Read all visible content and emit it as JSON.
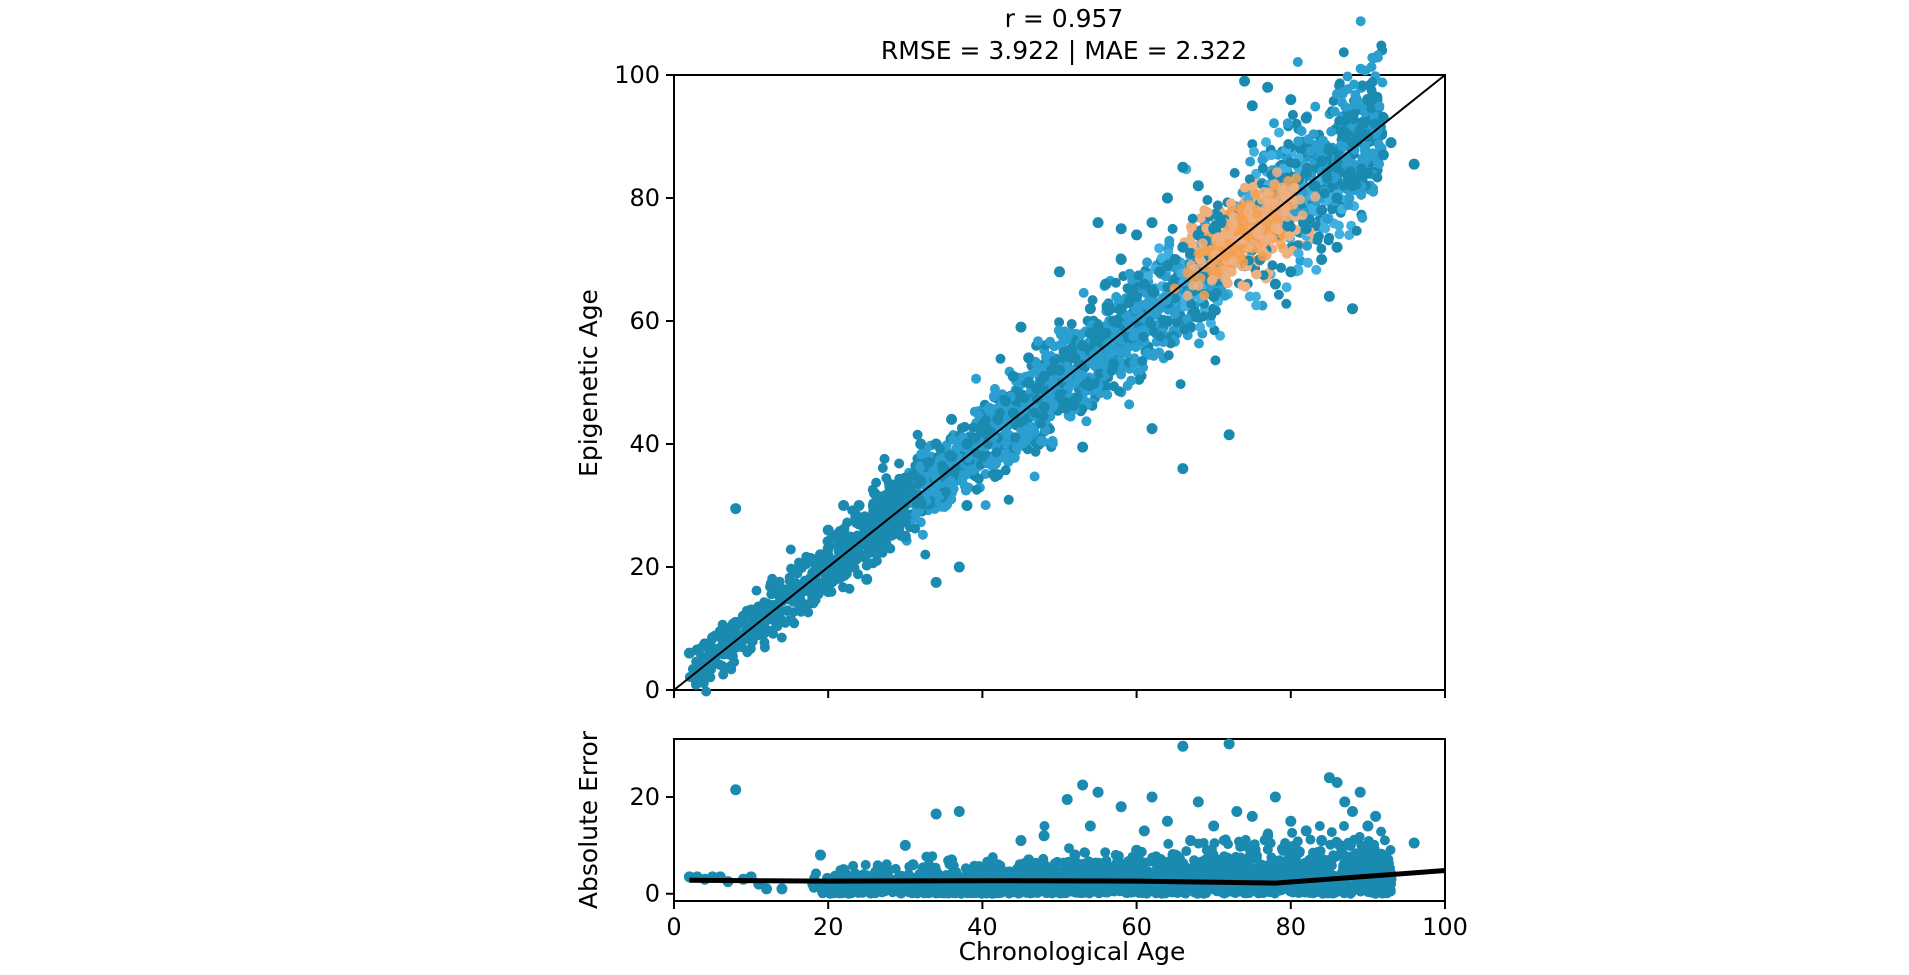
{
  "chart_data": [
    {
      "type": "scatter",
      "panel": "top",
      "title_line1": "r = 0.957",
      "title_line2": "RMSE = 3.922 | MAE = 2.322",
      "xlabel": "",
      "ylabel": "Epigenetic Age",
      "xlim": [
        0,
        100
      ],
      "ylim": [
        0,
        100
      ],
      "x_ticks": [
        0,
        20,
        40,
        60,
        80,
        100
      ],
      "y_ticks": [
        0,
        20,
        40,
        60,
        80,
        100
      ],
      "x_tick_labels_shown": false,
      "y_tick_labels": [
        "0",
        "20",
        "40",
        "60",
        "80",
        "100"
      ],
      "grid": false,
      "point_color": "#1a8ab0",
      "density_colormap": [
        "#1a8ab0",
        "#2a9fd0",
        "#3fb0e0",
        "#f0b080",
        "#f5a050"
      ],
      "reference_line": {
        "kind": "identity",
        "from": [
          0,
          0
        ],
        "to": [
          100,
          100
        ],
        "color": "#000000"
      },
      "points": [
        [
          2,
          6
        ],
        [
          3,
          6.5
        ],
        [
          4,
          7.5
        ],
        [
          5,
          8.5
        ],
        [
          6,
          9.5
        ],
        [
          7,
          10
        ],
        [
          8,
          11
        ],
        [
          9,
          12
        ],
        [
          10,
          13
        ],
        [
          11,
          13.5
        ],
        [
          12,
          14
        ],
        [
          14,
          14.5
        ],
        [
          15,
          15
        ],
        [
          16,
          16
        ],
        [
          8,
          29.5
        ],
        [
          18,
          19
        ],
        [
          19,
          22
        ],
        [
          20,
          23
        ],
        [
          21,
          25
        ],
        [
          22,
          26
        ],
        [
          23,
          24
        ],
        [
          24,
          27
        ],
        [
          25,
          26
        ],
        [
          26,
          28
        ],
        [
          27,
          31
        ],
        [
          28,
          29
        ],
        [
          29,
          30
        ],
        [
          30,
          32
        ],
        [
          31,
          35
        ],
        [
          32,
          34
        ],
        [
          33,
          37
        ],
        [
          34,
          40
        ],
        [
          34,
          17.5
        ],
        [
          37,
          20
        ],
        [
          35,
          36
        ],
        [
          36,
          38
        ],
        [
          38,
          40
        ],
        [
          39,
          41
        ],
        [
          40,
          43
        ],
        [
          41,
          42
        ],
        [
          42,
          44
        ],
        [
          43,
          47
        ],
        [
          44,
          45
        ],
        [
          45,
          48
        ],
        [
          46,
          50
        ],
        [
          47,
          49
        ],
        [
          48,
          51
        ],
        [
          49,
          52
        ],
        [
          50,
          52
        ],
        [
          51,
          55
        ],
        [
          52,
          54
        ],
        [
          53,
          56
        ],
        [
          54,
          58
        ],
        [
          55,
          59
        ],
        [
          56,
          58
        ],
        [
          57,
          60
        ],
        [
          58,
          62
        ],
        [
          59,
          63
        ],
        [
          60,
          64
        ],
        [
          61,
          66
        ],
        [
          62,
          65
        ],
        [
          63,
          68
        ],
        [
          64,
          69
        ],
        [
          65,
          70
        ],
        [
          66,
          72
        ],
        [
          67,
          71
        ],
        [
          68,
          74
        ],
        [
          69,
          73
        ],
        [
          70,
          75
        ],
        [
          71,
          76
        ],
        [
          72,
          74
        ],
        [
          73,
          77
        ],
        [
          74,
          78
        ],
        [
          75,
          76
        ],
        [
          76,
          79
        ],
        [
          77,
          78
        ],
        [
          78,
          81
        ],
        [
          79,
          80
        ],
        [
          80,
          82
        ],
        [
          81,
          83
        ],
        [
          82,
          84
        ],
        [
          83,
          82
        ],
        [
          84,
          86
        ],
        [
          85,
          88
        ],
        [
          86,
          85
        ],
        [
          87,
          90
        ],
        [
          88,
          89
        ],
        [
          89,
          91
        ],
        [
          90,
          90
        ],
        [
          91,
          92
        ],
        [
          92,
          93
        ],
        [
          93,
          89
        ],
        [
          96,
          85.5
        ],
        [
          53,
          39.5
        ],
        [
          62,
          42.5
        ],
        [
          66,
          36
        ],
        [
          72,
          41.5
        ],
        [
          55,
          76
        ],
        [
          58,
          75
        ],
        [
          74,
          99
        ],
        [
          77,
          98
        ],
        [
          75,
          95
        ],
        [
          80,
          96
        ],
        [
          82,
          93
        ],
        [
          90,
          96
        ],
        [
          45,
          59
        ],
        [
          50,
          68
        ],
        [
          85,
          64
        ],
        [
          88,
          62
        ],
        [
          84,
          70
        ],
        [
          86,
          72
        ],
        [
          78,
          66
        ],
        [
          80,
          68
        ],
        [
          60,
          74
        ],
        [
          66,
          85
        ],
        [
          42,
          35
        ],
        [
          38,
          30
        ],
        [
          30,
          25
        ],
        [
          25,
          18
        ],
        [
          20,
          16
        ],
        [
          18,
          15
        ],
        [
          22,
          30
        ],
        [
          28,
          33
        ],
        [
          40,
          38
        ],
        [
          48,
          46
        ],
        [
          52,
          47
        ],
        [
          57,
          53
        ],
        [
          64,
          60
        ],
        [
          70,
          64
        ],
        [
          76,
          70
        ],
        [
          82,
          75
        ],
        [
          84,
          78
        ],
        [
          86,
          80
        ],
        [
          88,
          82
        ],
        [
          90,
          84
        ],
        [
          92,
          87
        ],
        [
          68,
          82
        ],
        [
          64,
          80
        ],
        [
          62,
          76
        ],
        [
          58,
          70
        ],
        [
          56,
          66
        ],
        [
          54,
          62
        ],
        [
          46,
          54
        ],
        [
          44,
          51
        ],
        [
          36,
          44
        ],
        [
          32,
          40
        ],
        [
          26,
          32
        ],
        [
          24,
          30
        ],
        [
          20,
          26
        ]
      ],
      "density_core": {
        "center": [
          74,
          74
        ],
        "color": "#f5a860"
      }
    },
    {
      "type": "scatter",
      "panel": "bottom",
      "xlabel": "Chronological Age",
      "ylabel": "Absolute Error",
      "xlim": [
        0,
        100
      ],
      "ylim": [
        -1.5,
        32
      ],
      "x_ticks": [
        0,
        20,
        40,
        60,
        80,
        100
      ],
      "x_tick_labels": [
        "0",
        "20",
        "40",
        "60",
        "80",
        "100"
      ],
      "y_ticks": [
        0,
        20
      ],
      "y_tick_labels": [
        "0",
        "20"
      ],
      "grid": false,
      "point_color": "#1a8ab0",
      "points": [
        [
          2,
          3.5
        ],
        [
          3,
          3.5
        ],
        [
          4,
          3
        ],
        [
          5,
          3.5
        ],
        [
          6,
          3.5
        ],
        [
          7,
          2.5
        ],
        [
          8,
          21.5
        ],
        [
          9,
          3
        ],
        [
          10,
          3.5
        ],
        [
          11,
          2
        ],
        [
          12,
          1
        ],
        [
          14,
          1
        ],
        [
          18,
          2
        ],
        [
          19,
          8
        ],
        [
          20,
          3
        ],
        [
          22,
          5
        ],
        [
          24,
          2
        ],
        [
          26,
          4
        ],
        [
          28,
          3
        ],
        [
          30,
          10
        ],
        [
          31,
          6
        ],
        [
          33,
          4
        ],
        [
          34,
          16.5
        ],
        [
          36,
          7
        ],
        [
          37,
          17
        ],
        [
          38,
          5
        ],
        [
          40,
          3
        ],
        [
          42,
          6
        ],
        [
          44,
          4
        ],
        [
          45,
          11
        ],
        [
          46,
          7
        ],
        [
          48,
          5
        ],
        [
          48,
          12
        ],
        [
          50,
          4
        ],
        [
          51,
          19.5
        ],
        [
          52,
          8
        ],
        [
          53,
          22.5
        ],
        [
          54,
          14
        ],
        [
          55,
          21
        ],
        [
          56,
          6
        ],
        [
          58,
          18
        ],
        [
          60,
          9
        ],
        [
          61,
          13
        ],
        [
          62,
          20
        ],
        [
          63,
          5
        ],
        [
          64,
          15
        ],
        [
          65,
          8
        ],
        [
          66,
          30.5
        ],
        [
          67,
          11
        ],
        [
          68,
          19
        ],
        [
          69,
          7
        ],
        [
          70,
          14
        ],
        [
          71,
          4
        ],
        [
          72,
          31
        ],
        [
          73,
          17
        ],
        [
          74,
          10
        ],
        [
          75,
          16
        ],
        [
          76,
          6
        ],
        [
          77,
          12
        ],
        [
          78,
          20
        ],
        [
          79,
          9
        ],
        [
          80,
          15
        ],
        [
          81,
          5
        ],
        [
          82,
          13
        ],
        [
          83,
          8
        ],
        [
          84,
          11
        ],
        [
          85,
          24
        ],
        [
          86,
          23
        ],
        [
          87,
          19
        ],
        [
          88,
          17
        ],
        [
          89,
          21
        ],
        [
          90,
          14
        ],
        [
          91,
          16
        ],
        [
          92,
          5
        ],
        [
          93,
          3
        ],
        [
          96,
          10.5
        ],
        [
          56,
          3
        ],
        [
          62,
          2
        ],
        [
          68,
          3
        ],
        [
          74,
          2
        ],
        [
          80,
          2
        ],
        [
          86,
          3
        ],
        [
          90,
          2
        ],
        [
          40,
          1
        ],
        [
          45,
          2
        ],
        [
          50,
          1
        ],
        [
          58,
          2
        ],
        [
          64,
          1
        ],
        [
          70,
          1
        ],
        [
          76,
          1
        ]
      ],
      "trend_line": {
        "color": "#000000",
        "points": [
          [
            2,
            2.8
          ],
          [
            20,
            2.6
          ],
          [
            40,
            2.7
          ],
          [
            60,
            2.6
          ],
          [
            78,
            2.2
          ],
          [
            100,
            4.8
          ]
        ]
      }
    }
  ]
}
